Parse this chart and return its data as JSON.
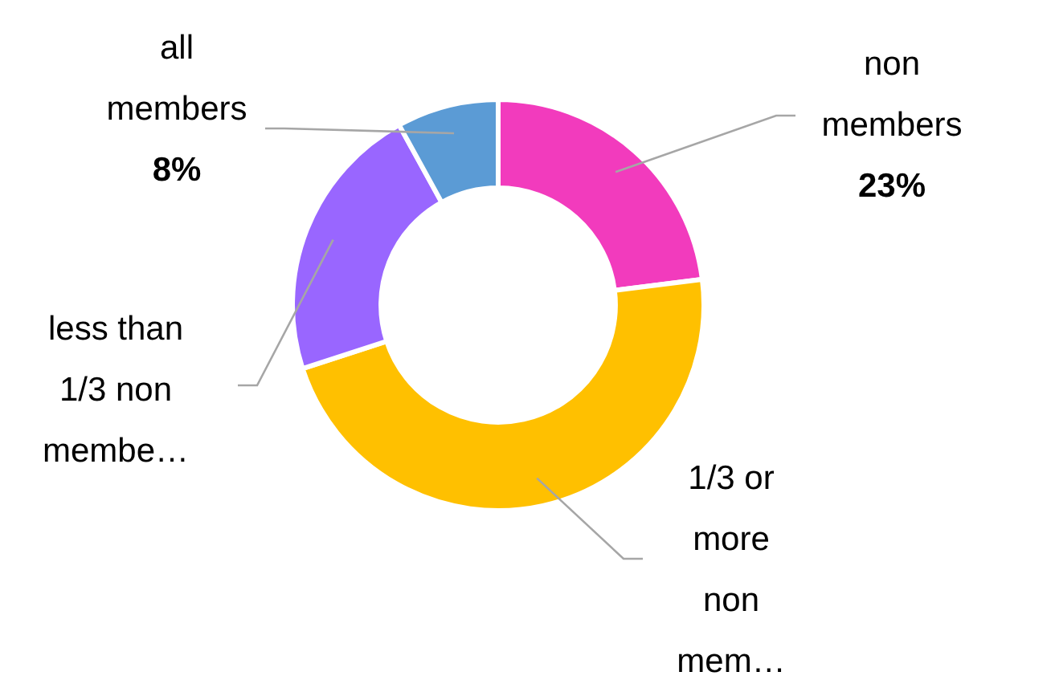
{
  "chart_data": {
    "type": "donut",
    "categories": [
      "non members",
      "1/3 or more non mem…",
      "less than 1/3 non membe…",
      "all members"
    ],
    "values": [
      23,
      47,
      22,
      8
    ],
    "colors": [
      "#f23bbd",
      "#ffc000",
      "#9966ff",
      "#5b9bd5"
    ],
    "value_labels": [
      "23%",
      null,
      null,
      "8%"
    ]
  }
}
